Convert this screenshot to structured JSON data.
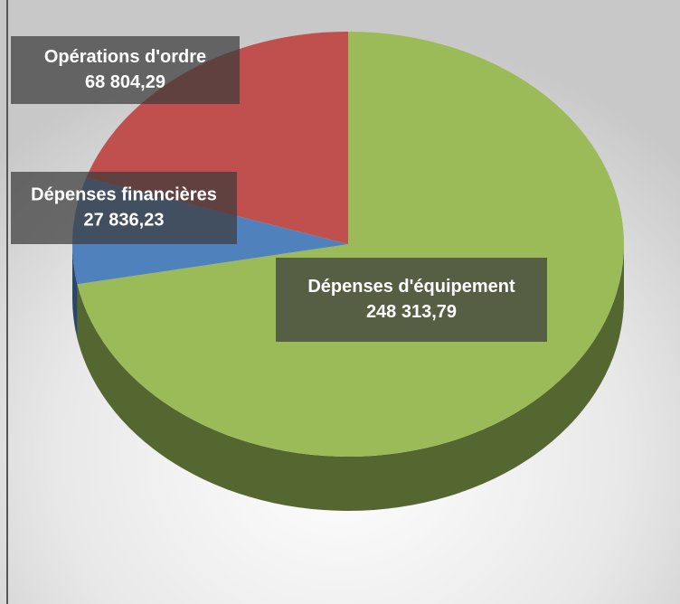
{
  "chart_data": {
    "type": "pie",
    "categories": [
      "Dépenses d'équipement",
      "Dépenses financières",
      "Opérations d'ordre"
    ],
    "values": [
      248313.79,
      27836.23,
      68804.29
    ],
    "value_labels": [
      "248 313,79",
      "27 836,23",
      "68 804,29"
    ],
    "colors": [
      "#9bbb59",
      "#4f81bd",
      "#c0504d"
    ]
  }
}
